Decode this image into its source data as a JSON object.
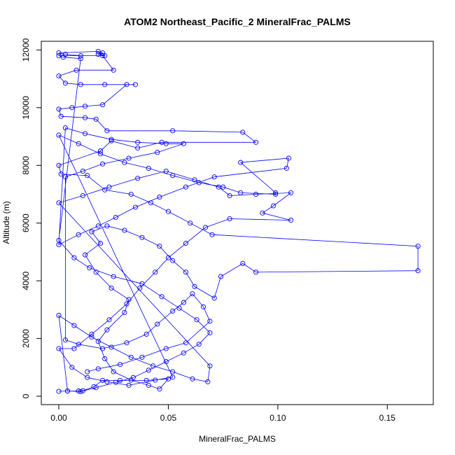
{
  "chart_data": {
    "type": "line",
    "title": "ATOM2 Northeast_Pacific_2 MineralFrac_PALMS",
    "xlabel": "MineralFrac_PALMS",
    "ylabel": "Altitude (m)",
    "xlim": [
      -0.008,
      0.171
    ],
    "ylim": [
      -290,
      12300
    ],
    "xticks": [
      0.0,
      0.05,
      0.1,
      0.15
    ],
    "xtick_labels": [
      "0.00",
      "0.05",
      "0.10",
      "0.15"
    ],
    "yticks": [
      0,
      2000,
      4000,
      6000,
      8000,
      10000,
      12000
    ],
    "ytick_labels": [
      "0",
      "2000",
      "4000",
      "6000",
      "8000",
      "10000",
      "12000"
    ],
    "grid": false,
    "legend": "none",
    "series": [
      {
        "color": "#0000ff",
        "marker": "open-circle",
        "points": [
          [
            0.0,
            170
          ],
          [
            0.004,
            180
          ],
          [
            0.009,
            180
          ],
          [
            0.011,
            190
          ],
          [
            0.016,
            330
          ],
          [
            0.02,
            550
          ],
          [
            0.028,
            550
          ],
          [
            0.04,
            550
          ],
          [
            0.05,
            600
          ],
          [
            0.046,
            250
          ],
          [
            0.041,
            380
          ],
          [
            0.033,
            560
          ],
          [
            0.025,
            850
          ],
          [
            0.021,
            1300
          ],
          [
            0.018,
            1900
          ],
          [
            0.022,
            2300
          ],
          [
            0.03,
            2900
          ],
          [
            0.032,
            3350
          ],
          [
            0.024,
            3750
          ],
          [
            0.017,
            4300
          ],
          [
            0.012,
            4900
          ],
          [
            0.019,
            5300
          ],
          [
            0.015,
            5700
          ],
          [
            0.022,
            5900
          ],
          [
            0.03,
            5750
          ],
          [
            0.038,
            5500
          ],
          [
            0.046,
            5200
          ],
          [
            0.052,
            4700
          ],
          [
            0.058,
            4300
          ],
          [
            0.062,
            3800
          ],
          [
            0.071,
            3400
          ],
          [
            0.074,
            4150
          ],
          [
            0.084,
            4600
          ],
          [
            0.09,
            4300
          ],
          [
            0.164,
            4350
          ],
          [
            0.164,
            5200
          ],
          [
            0.07,
            5600
          ],
          [
            0.06,
            6000
          ],
          [
            0.05,
            6400
          ],
          [
            0.042,
            6700
          ],
          [
            0.033,
            7000
          ],
          [
            0.021,
            7150
          ],
          [
            0.013,
            7650
          ],
          [
            0.001,
            7700
          ],
          [
            0.0,
            8000
          ],
          [
            0.019,
            8500
          ],
          [
            0.024,
            8850
          ],
          [
            0.036,
            8600
          ],
          [
            0.047,
            8800
          ],
          [
            0.09,
            8800
          ],
          [
            0.084,
            9150
          ],
          [
            0.052,
            9200
          ],
          [
            0.022,
            9200
          ],
          [
            0.017,
            9600
          ],
          [
            0.012,
            9650
          ],
          [
            0.001,
            9700
          ],
          [
            0.0,
            9950
          ],
          [
            0.006,
            10000
          ],
          [
            0.012,
            10050
          ],
          [
            0.02,
            10100
          ],
          [
            0.031,
            10800
          ],
          [
            0.035,
            10800
          ],
          [
            0.021,
            10800
          ],
          [
            0.01,
            10800
          ],
          [
            0.003,
            10850
          ],
          [
            0.0,
            11100
          ],
          [
            0.008,
            11300
          ],
          [
            0.025,
            11300
          ],
          [
            0.02,
            11800
          ],
          [
            0.01,
            11800
          ],
          [
            0.003,
            11850
          ],
          [
            0.0,
            11900
          ],
          [
            0.018,
            11950
          ],
          [
            0.02,
            11900
          ],
          [
            0.018,
            11850
          ],
          [
            0.021,
            11800
          ],
          [
            0.0,
            11800
          ],
          [
            0.002,
            11750
          ],
          [
            0.01,
            11700
          ],
          [
            0.0,
            5400
          ],
          [
            0.007,
            4800
          ],
          [
            0.014,
            4450
          ],
          [
            0.025,
            4150
          ],
          [
            0.038,
            3900
          ],
          [
            0.047,
            3450
          ],
          [
            0.055,
            3050
          ],
          [
            0.063,
            2650
          ],
          [
            0.069,
            2200
          ],
          [
            0.064,
            1800
          ],
          [
            0.057,
            1500
          ],
          [
            0.049,
            1200
          ],
          [
            0.041,
            900
          ],
          [
            0.034,
            650
          ],
          [
            0.026,
            480
          ],
          [
            0.017,
            300
          ],
          [
            0.01,
            160
          ],
          [
            0.004,
            180
          ],
          [
            0.0,
            2800
          ],
          [
            0.007,
            2450
          ],
          [
            0.015,
            2050
          ],
          [
            0.024,
            1700
          ],
          [
            0.033,
            1350
          ],
          [
            0.043,
            1050
          ],
          [
            0.052,
            850
          ],
          [
            0.061,
            600
          ],
          [
            0.068,
            500
          ],
          [
            0.069,
            1050
          ],
          [
            0.0,
            6700
          ],
          [
            0.011,
            6950
          ],
          [
            0.023,
            7250
          ],
          [
            0.036,
            7550
          ],
          [
            0.049,
            7800
          ],
          [
            0.062,
            7500
          ],
          [
            0.073,
            7250
          ],
          [
            0.078,
            6950
          ],
          [
            0.09,
            7000
          ],
          [
            0.106,
            7050
          ],
          [
            0.098,
            6600
          ],
          [
            0.093,
            6350
          ],
          [
            0.106,
            6100
          ],
          [
            0.078,
            6150
          ],
          [
            0.067,
            5850
          ],
          [
            0.058,
            5300
          ],
          [
            0.05,
            4800
          ],
          [
            0.044,
            4300
          ],
          [
            0.037,
            3750
          ],
          [
            0.031,
            3200
          ],
          [
            0.023,
            2650
          ],
          [
            0.015,
            2150
          ],
          [
            0.007,
            1650
          ],
          [
            0.0,
            1650
          ],
          [
            0.006,
            1000
          ],
          [
            0.013,
            650
          ],
          [
            0.022,
            500
          ],
          [
            0.032,
            380
          ],
          [
            0.044,
            560
          ],
          [
            0.052,
            660
          ],
          [
            0.0,
            9050
          ],
          [
            0.009,
            8750
          ],
          [
            0.019,
            8400
          ],
          [
            0.03,
            8100
          ],
          [
            0.041,
            7900
          ],
          [
            0.052,
            7650
          ],
          [
            0.064,
            7400
          ],
          [
            0.075,
            7250
          ],
          [
            0.083,
            7050
          ],
          [
            0.099,
            7000
          ],
          [
            0.099,
            7050
          ],
          [
            0.083,
            8100
          ],
          [
            0.105,
            8250
          ],
          [
            0.104,
            7900
          ],
          [
            0.071,
            7600
          ],
          [
            0.058,
            7250
          ],
          [
            0.046,
            6900
          ],
          [
            0.035,
            6550
          ],
          [
            0.026,
            6200
          ],
          [
            0.018,
            5900
          ],
          [
            0.009,
            5600
          ],
          [
            0.0,
            5250
          ],
          [
            0.003,
            9300
          ],
          [
            0.012,
            9100
          ],
          [
            0.024,
            8900
          ],
          [
            0.036,
            8800
          ],
          [
            0.049,
            8750
          ],
          [
            0.057,
            8750
          ],
          [
            0.045,
            8450
          ],
          [
            0.032,
            8250
          ],
          [
            0.02,
            8050
          ],
          [
            0.011,
            7800
          ],
          [
            0.003,
            7600
          ],
          [
            0.003,
            1950
          ],
          [
            0.009,
            1800
          ],
          [
            0.02,
            1650
          ],
          [
            0.031,
            1850
          ],
          [
            0.04,
            2150
          ],
          [
            0.045,
            2500
          ],
          [
            0.052,
            2950
          ],
          [
            0.057,
            3250
          ],
          [
            0.061,
            3550
          ],
          [
            0.066,
            3100
          ],
          [
            0.069,
            2600
          ],
          [
            0.058,
            1850
          ],
          [
            0.049,
            1650
          ],
          [
            0.038,
            1350
          ],
          [
            0.028,
            1100
          ],
          [
            0.018,
            950
          ],
          [
            0.013,
            850
          ]
        ]
      }
    ]
  }
}
